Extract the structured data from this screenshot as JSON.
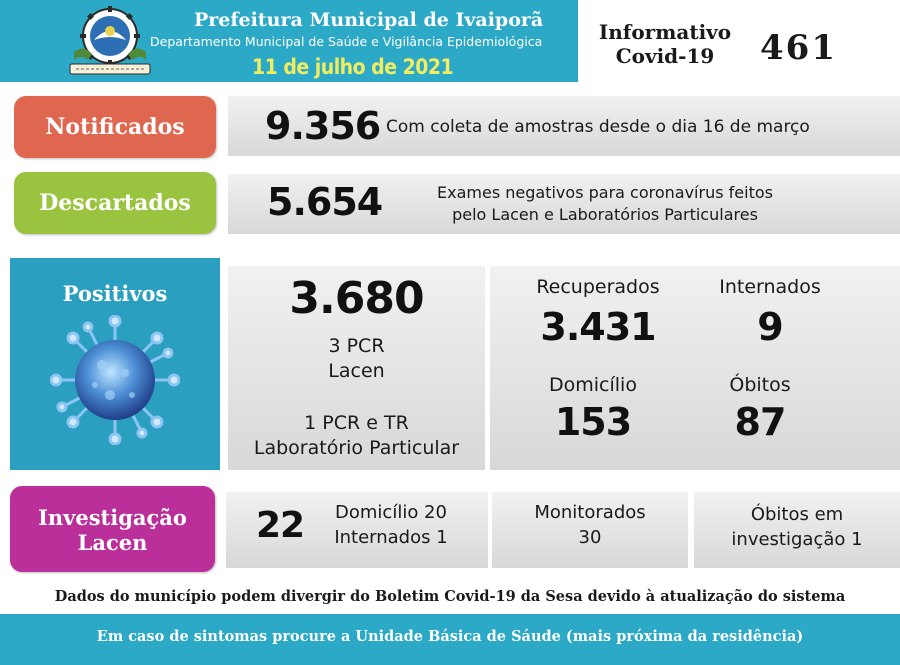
{
  "header": {
    "title": "Prefeitura Municipal de Ivaiporã",
    "department": "Departamento Municipal de Saúde e Vigilância Epidemiológica",
    "date": "11 de julho de 2021",
    "bulletin_line1": "Informativo",
    "bulletin_line2": "Covid-19",
    "edition": "461",
    "crest_icon": "municipal-crest"
  },
  "notificados": {
    "label": "Notificados",
    "value": "9.356",
    "description": "Com coleta de amostras desde o dia 16 de março",
    "color": "#e0674f"
  },
  "descartados": {
    "label": "Descartados",
    "value": "5.654",
    "description_line1": "Exames negativos para coronavírus feitos",
    "description_line2": "pelo Lacen e Laboratórios Particulares",
    "color": "#9ac33f"
  },
  "positivos": {
    "label": "Positivos",
    "value": "3.680",
    "line1": "3 PCR",
    "line2": "Lacen",
    "line3": "1 PCR e TR",
    "line4": "Laboratório Particular",
    "virus_icon": "coronavirus",
    "color": "#2b9fbf"
  },
  "status": {
    "recuperados_label": "Recuperados",
    "recuperados_value": "3.431",
    "internados_label": "Internados",
    "internados_value": "9",
    "domicilio_label": "Domicílio",
    "domicilio_value": "153",
    "obitos_label": "Óbitos",
    "obitos_value": "87"
  },
  "investigacao": {
    "label_line1": "Investigação",
    "label_line2": "Lacen",
    "value": "22",
    "domicilio": "Domicílio 20",
    "internados": "Internados 1",
    "monitorados_label": "Monitorados",
    "monitorados_value": "30",
    "obitos_line1": "Óbitos em",
    "obitos_line2": "investigação 1",
    "color": "#bb2f9a"
  },
  "footer": {
    "note": "Dados do município podem divergir do Boletim Covid-19 da Sesa devido à atualização do sistema",
    "advice": "Em caso de sintomas procure a Unidade Básica de Sáude (mais próxima da residência)"
  }
}
